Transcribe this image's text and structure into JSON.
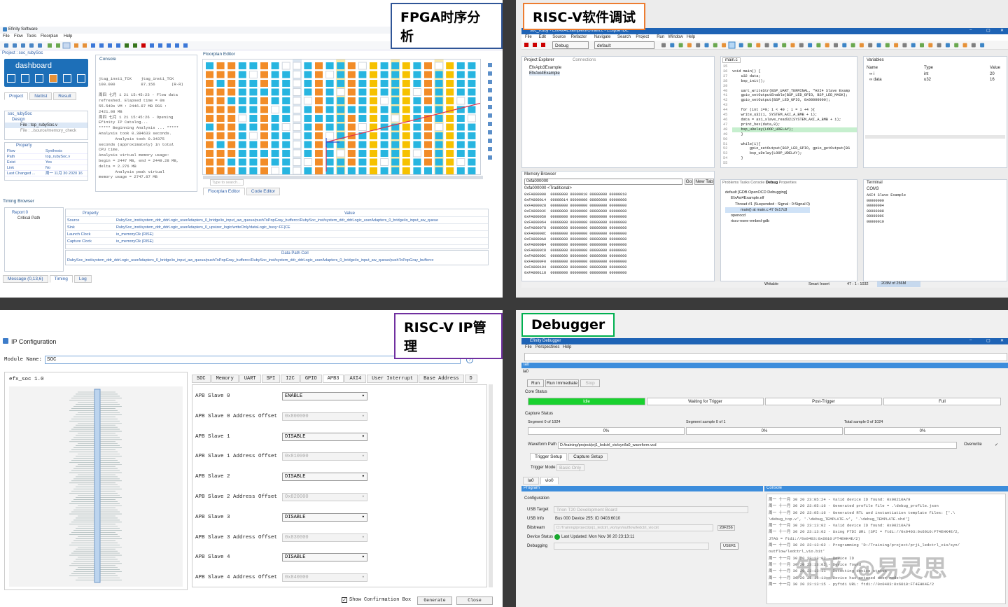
{
  "captions": {
    "fpga": "FPGA时序分析",
    "riscv_sw": "RISC-V软件调试",
    "riscv_ip": "RISC-V IP管理",
    "debugger": "Debugger"
  },
  "efinity": {
    "app_title": "Efinity Software",
    "menu": [
      "File",
      "Flow",
      "Tools",
      "Floorplan",
      "Help"
    ],
    "project_title": "Project : soc_rubySoc",
    "dashboard": "dashboard",
    "tabs": [
      "Project",
      "Netlist",
      "Result"
    ],
    "tree": [
      "soc_rubySoc",
      "Design",
      "File : top_rubySoc.v",
      "File : ../source/memory_check"
    ],
    "property_header": "Property",
    "properties": [
      {
        "k": "Flow",
        "v": "Synthesis"
      },
      {
        "k": "Path",
        "v": "top_rubySoc.v"
      },
      {
        "k": "Exist",
        "v": "Yes"
      },
      {
        "k": "Link",
        "v": "No"
      },
      {
        "k": "Last Changed ...",
        "v": "周一 11月 30 2020 16"
      }
    ],
    "console_title": "Console",
    "console_lines": [
      "jtag_inst1_TCK    jtag_inst1_TCK",
      "100.000           87.156       (R-R)",
      "",
      "周四 七月 1 21 15:45:23 - Flow data",
      "refreshed. Elapsed time = 0m",
      "55.549s VM : 2446.87 MB RSS :",
      "2421.08 MB",
      "周四 七月 1 21 15:45:26 - Opening",
      "Efinity IP Catalog...",
      "***** Beginning Analysis ... *****",
      "Analysis took 0.384633 seconds.",
      "       Analysis took 0.34375",
      "seconds (approximately) in total",
      "CPU time.",
      "Analysis virtual memory usage:",
      "begin = 2447 MB, end = 2449.28 MB,",
      "delta = 2.276 MB",
      "       Analysis peak virtual",
      "memory usage = 2747.87 MB"
    ],
    "floorplan_title": "Floorplan Editor",
    "floorplan_search": "Type to search...",
    "floorplan_tabs": [
      "Floorplan Editor",
      "Code Editor"
    ],
    "timing_title": "Timing Browser",
    "timing_tree": [
      "Report 0",
      "Critical Path"
    ],
    "timing_headers": [
      "Property",
      "Value"
    ],
    "timing_rows": [
      {
        "k": "Source",
        "v": "RubySoc_inst/system_ddr_ddrLogic_userAdapters_0_bridge/io_input_aw_queue/pushToPopGray_buffercc/RubySoc_inst/system_ddr_ddrLogic_userAdapters_0_bridge/io_input_aw_queue"
      },
      {
        "k": "Sink",
        "v": "RubySoc_inst/system_ddr_ddrLogic_userAdapters_0_upsizer_logic/writeOnly/dataLogic_busy~FF|CE"
      },
      {
        "k": "Launch Clock",
        "v": "io_memoryClk (RISE)"
      },
      {
        "k": "Capture Clock",
        "v": "io_memoryClk (RISE)"
      }
    ],
    "data_path_label": "Data Path Cell",
    "data_path_value": "RubySoc_inst/system_ddr_ddrLogic_userAdapters_0_bridge/io_input_aw_queue/pushToPopGray_buffercc/RubySoc_inst/system_ddr_ddrLogic_userAdapters_0_bridge/io_input_aw_queue/pushToPopGray_buffercc",
    "bottom_tabs": [
      "Message (0,13,6)",
      "Timing",
      "Log"
    ]
  },
  "eclipse": {
    "window_title": "soc_Ruby - EfxAxi4Example/src/main.c - Eclipse IDE",
    "menu": [
      "File",
      "Edit",
      "Source",
      "Refactor",
      "Navigate",
      "Search",
      "Project",
      "Run",
      "Window",
      "Help"
    ],
    "run_config": "Debug",
    "launch_target": "default",
    "project_explorer": "Project Explorer",
    "connections": "Connections",
    "projects": [
      "EfxApb3Example",
      "EfxAxi4Example"
    ],
    "editor_tab": "main.c",
    "line_numbers": [
      "35",
      "36",
      "37",
      "38",
      "39",
      "40",
      "41",
      "42",
      "43",
      "44",
      "45",
      "46",
      "47",
      "48",
      "49",
      "50",
      "51",
      "52",
      "53",
      "54",
      "55"
    ],
    "code_lines": [
      "",
      "void main() {",
      "    u32 data;",
      "    bsp_init();",
      "",
      "    uart_writeStr(BSP_UART_TERMINAL, \"AXI4 Slave Examp",
      "    gpio_setOutputEnable(BSP_LED_GPIO, BSP_LED_MASK);",
      "    gpio_setOutput(BSP_LED_GPIO, 0x00000000);",
      "",
      "    for (int i=0; i < 40 ; i = i +4 ){",
      "    write_u32(i, SYSTEM_AXI_A_BMB + i);",
      "    data = axi_slave_read32(SYSTEM_AXI_A_BMB + i);",
      "    print_hex(data,8);",
      "    bsp_uDelay(LOOP_UDELAY);",
      "    }",
      "",
      "    while(1){",
      "        gpio_setOutput(BSP_LED_GPIO, gpio_getOutput(BS",
      "        bsp_uDelay(LOOP_UDELAY);",
      "    }",
      ""
    ],
    "variables_title": "Variables",
    "var_headers": [
      "Name",
      "Type",
      "Value"
    ],
    "variables": [
      {
        "name": "i",
        "type": "int",
        "value": "20"
      },
      {
        "name": "data",
        "type": "u32",
        "value": "16"
      }
    ],
    "memory_title": "Memory Browser",
    "memory_addr": "0xfa000000",
    "memory_go": "Go",
    "memory_newtab": "New Tab",
    "memory_tab": "0xfa000000 <Traditional>",
    "memory_rows": [
      "0xFA000000  00000000 00000010 00000000 00000010",
      "0xFA000014  00000014 00000000 00000000 00000000",
      "0xFA000028  00000000 00000000 00000000 00000000",
      "0xFA00003C  00000000 00000000 00000000 00000000",
      "0xFA000050  00000000 00000000 00000000 00000000",
      "0xFA000064  00000000 00000000 00000000 00000000",
      "0xFA000078  00000000 00000000 00000000 00000000",
      "0xFA00008C  00000000 00000000 00000000 00000000",
      "0xFA0000A0  00000000 00000000 00000000 00000000",
      "0xFA0000B4  00000000 00000000 00000000 00000000",
      "0xFA0000C8  00000000 00000000 00000000 00000000",
      "0xFA0000DC  00000000 00000000 00000000 00000000",
      "0xFA0000F0  00000000 00000000 00000000 00000000",
      "0xFA000104  00000000 00000000 00000000 00000000",
      "0xFA000118  00000000 00000000 00000000 00000000"
    ],
    "debug_tabs": [
      "Problems",
      "Tasks",
      "Console",
      "Debug",
      "Properties"
    ],
    "debug_tree": [
      "default [GDB OpenOCD Debugging]",
      "EfxAxi4Example.elf",
      "Thread #1 (Suspended : Signal : 0:Signal 0)",
      "main() at main.c:47 0x17c8",
      "openocd",
      "riscv-none-embed-gdb"
    ],
    "terminal_title": "Terminal",
    "terminal_tab": "COM3",
    "terminal_lines": [
      "AXI4 Slave Example",
      "00000000",
      "00000004",
      "00000008",
      "0000000C",
      "00000010"
    ],
    "status": [
      "Writable",
      "Smart Insert",
      "47 : 1 : 1032",
      "203M of 256M"
    ]
  },
  "ipconfig": {
    "title": "IP Configuration",
    "module_label": "Module Name:",
    "module_value": "SOC",
    "tree_root": "efx_soc 1.0",
    "tabs": [
      "SOC",
      "Memory",
      "UART",
      "SPI",
      "I2C",
      "GPIO",
      "APB3",
      "AXI4",
      "User Interrupt",
      "Base Address",
      "D"
    ],
    "active_tab": "APB3",
    "fields": [
      {
        "label": "APB Slave 0",
        "value": "ENABLE",
        "disabled": false
      },
      {
        "label": "APB Slave 0 Address Offset",
        "value": "0x800000",
        "disabled": true
      },
      {
        "label": "APB Slave 1",
        "value": "DISABLE",
        "disabled": false
      },
      {
        "label": "APB Slave 1 Address Offset",
        "value": "0x810000",
        "disabled": true
      },
      {
        "label": "APB Slave 2",
        "value": "DISABLE",
        "disabled": false
      },
      {
        "label": "APB Slave 2 Address Offset",
        "value": "0x820000",
        "disabled": true
      },
      {
        "label": "APB Slave 3",
        "value": "DISABLE",
        "disabled": false
      },
      {
        "label": "APB Slave 3 Address Offset",
        "value": "0x830000",
        "disabled": true
      },
      {
        "label": "APB Slave 4",
        "value": "DISABLE",
        "disabled": false
      },
      {
        "label": "APB Slave 4 Address Offset",
        "value": "0x840000",
        "disabled": true
      }
    ],
    "show_confirm": "Show Confirmation Box",
    "generate": "Generate",
    "close": "Close"
  },
  "debugger": {
    "title": "Efinity Debugger",
    "menu": [
      "File",
      "Perspectives",
      "Help"
    ],
    "la_tab": "la0",
    "la_label": "la0",
    "run": "Run",
    "run_immediate": "Run Immediate",
    "stop": "Stop",
    "core_status": "Core Status",
    "statuses": [
      "Idle",
      "Waiting for Trigger",
      "Post-Trigger",
      "Full"
    ],
    "capture_status": "Capture Status",
    "segment": "Segment 0 of 1024",
    "segment_sample": "Segment sample 0 of 1",
    "total_sample": "Total sample 0 of 1024",
    "percents": [
      "0%",
      "0%",
      "0%"
    ],
    "waveform_label": "Waveform Path",
    "waveform_path": "D:/training/project/prj1_ledctrl_vio/syn/la0_waveform.vcd",
    "overwrite": "Overwrite",
    "trigger_tabs": [
      "Trigger Setup",
      "Capture Setup"
    ],
    "trigger_mode_label": "Trigger Mode",
    "trigger_mode": "Basic Only",
    "bottom_tabs": [
      "la0",
      "vio0"
    ],
    "program_title": "Program",
    "configuration": "Configuration",
    "usb_target_label": "USB Target",
    "usb_target": "Trion T20 Development Board",
    "usb_info_label": "USB Info",
    "usb_info": "Bus 000 Device 255: ID 0403:6010",
    "bitstream_label": "Bitstream",
    "bitstream": "D:/Training/project/prj1_ledctrl_vio/syn/outflow/ledctrl_vio.bit",
    "bitstream_size": "20F256",
    "device_status_label": "Device Status",
    "device_status": "Last Updated: Mon Nov 30 20 23:13:11",
    "debugging_label": "Debugging",
    "debug_user": "USER1",
    "console_title": "Console",
    "console_lines": [
      "周一 十一月 30 20 23:05:24 - Valid device ID found: 0x00210A79",
      "周一 十一月 30 20 23:05:16 - Generated profile file = .\\debug_profile.json",
      "周一 十一月 30 20 23:05:16 - Generated RTL and instantiation template files: ['.\\",
      "\\debug_top.v', '.\\debug_TEMPLATE.v', '.\\debug_TEMPLATE.vhd']",
      "周一 十一月 30 20 23:13:02 - Valid device ID found: 0x00210A79",
      "周一 十一月 30 20 23:13:02 - Using FTDI URL (SPI = ftdi://0x0403:0x6010:FT4EHK4E/2,",
      "JTAG = ftdi://0x0403:0x6010:FT4EHK4E/2)",
      "周一 十一月 30 20 23:13:02 - Programming 'D:/Training/project/prj1_ledctrl_vio/syn/",
      "outflow/ledctrl_vio.bit'",
      "周一 十一月 30 20 23:13:02 - Device ID",
      "周一 十一月 30 20 23:13:02 - Device found",
      "周一 十一月 30 20 23:13:11 - Detecting device status",
      "周一 十一月 30 20 23:13:11 - Device has entered user mode!",
      "周一 十一月 30 20 23:13:15 - pyftdi URL: ftdi://0x0403:0x6010:FT4EHK4E/2"
    ],
    "watermark": "知乎 @易灵思"
  }
}
